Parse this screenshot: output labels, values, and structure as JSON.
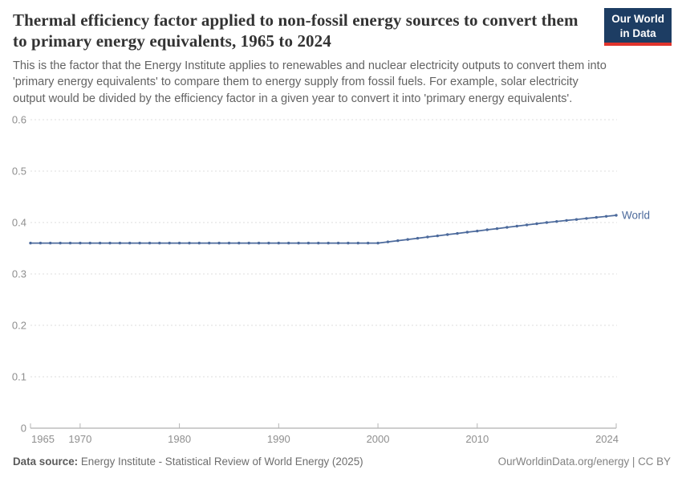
{
  "header": {
    "title": "Thermal efficiency factor applied to non-fossil energy sources to convert them to primary energy equivalents, 1965 to 2024",
    "subtitle": "This is the factor that the Energy Institute applies to renewables and nuclear electricity outputs to convert them into 'primary energy equivalents' to compare them to energy supply from fossil fuels. For example, solar electricity output would be divided by the efficiency factor in a given year to convert it into 'primary energy equivalents'.",
    "logo": {
      "line1": "Our World",
      "line2": "in Data",
      "bg_color": "#1d3d63",
      "accent_color": "#e0342c"
    }
  },
  "chart_data": {
    "type": "line",
    "title": "Thermal efficiency factor applied to non-fossil energy sources to convert them to primary energy equivalents, 1965 to 2024",
    "xlabel": "",
    "ylabel": "",
    "ylim": [
      0,
      0.6
    ],
    "yticks": [
      0,
      0.1,
      0.2,
      0.3,
      0.4,
      0.5,
      0.6
    ],
    "ytick_labels": [
      "0",
      "0.1",
      "0.2",
      "0.3",
      "0.4",
      "0.5",
      "0.6"
    ],
    "xticks": [
      1965,
      1970,
      1980,
      1990,
      2000,
      2010,
      2024
    ],
    "grid": "horizontal-dashed",
    "legend_position": "end-of-line",
    "x": [
      1965,
      1966,
      1967,
      1968,
      1969,
      1970,
      1971,
      1972,
      1973,
      1974,
      1975,
      1976,
      1977,
      1978,
      1979,
      1980,
      1981,
      1982,
      1983,
      1984,
      1985,
      1986,
      1987,
      1988,
      1989,
      1990,
      1991,
      1992,
      1993,
      1994,
      1995,
      1996,
      1997,
      1998,
      1999,
      2000,
      2001,
      2002,
      2003,
      2004,
      2005,
      2006,
      2007,
      2008,
      2009,
      2010,
      2011,
      2012,
      2013,
      2014,
      2015,
      2016,
      2017,
      2018,
      2019,
      2020,
      2021,
      2022,
      2023,
      2024
    ],
    "series": [
      {
        "name": "World",
        "color": "#4C6A9C",
        "values": [
          0.36,
          0.36,
          0.36,
          0.36,
          0.36,
          0.36,
          0.36,
          0.36,
          0.36,
          0.36,
          0.36,
          0.36,
          0.36,
          0.36,
          0.36,
          0.36,
          0.36,
          0.36,
          0.36,
          0.36,
          0.36,
          0.36,
          0.36,
          0.36,
          0.36,
          0.36,
          0.36,
          0.36,
          0.36,
          0.36,
          0.36,
          0.36,
          0.36,
          0.36,
          0.36,
          0.36,
          0.3624,
          0.3647,
          0.3671,
          0.3694,
          0.3718,
          0.3741,
          0.3765,
          0.3788,
          0.3812,
          0.3835,
          0.3859,
          0.3882,
          0.3906,
          0.3929,
          0.3953,
          0.3976,
          0.4,
          0.402,
          0.404,
          0.406,
          0.408,
          0.41,
          0.412,
          0.414
        ]
      }
    ],
    "colors": {
      "gridline": "#dcdcdc",
      "axis": "#9e9e9e",
      "tick": "#b5b5b5",
      "tick_label": "#8f8f8f"
    }
  },
  "footer": {
    "source_label": "Data source:",
    "source_value": "Energy Institute - Statistical Review of World Energy (2025)",
    "credit": "OurWorldinData.org/energy | CC BY"
  }
}
